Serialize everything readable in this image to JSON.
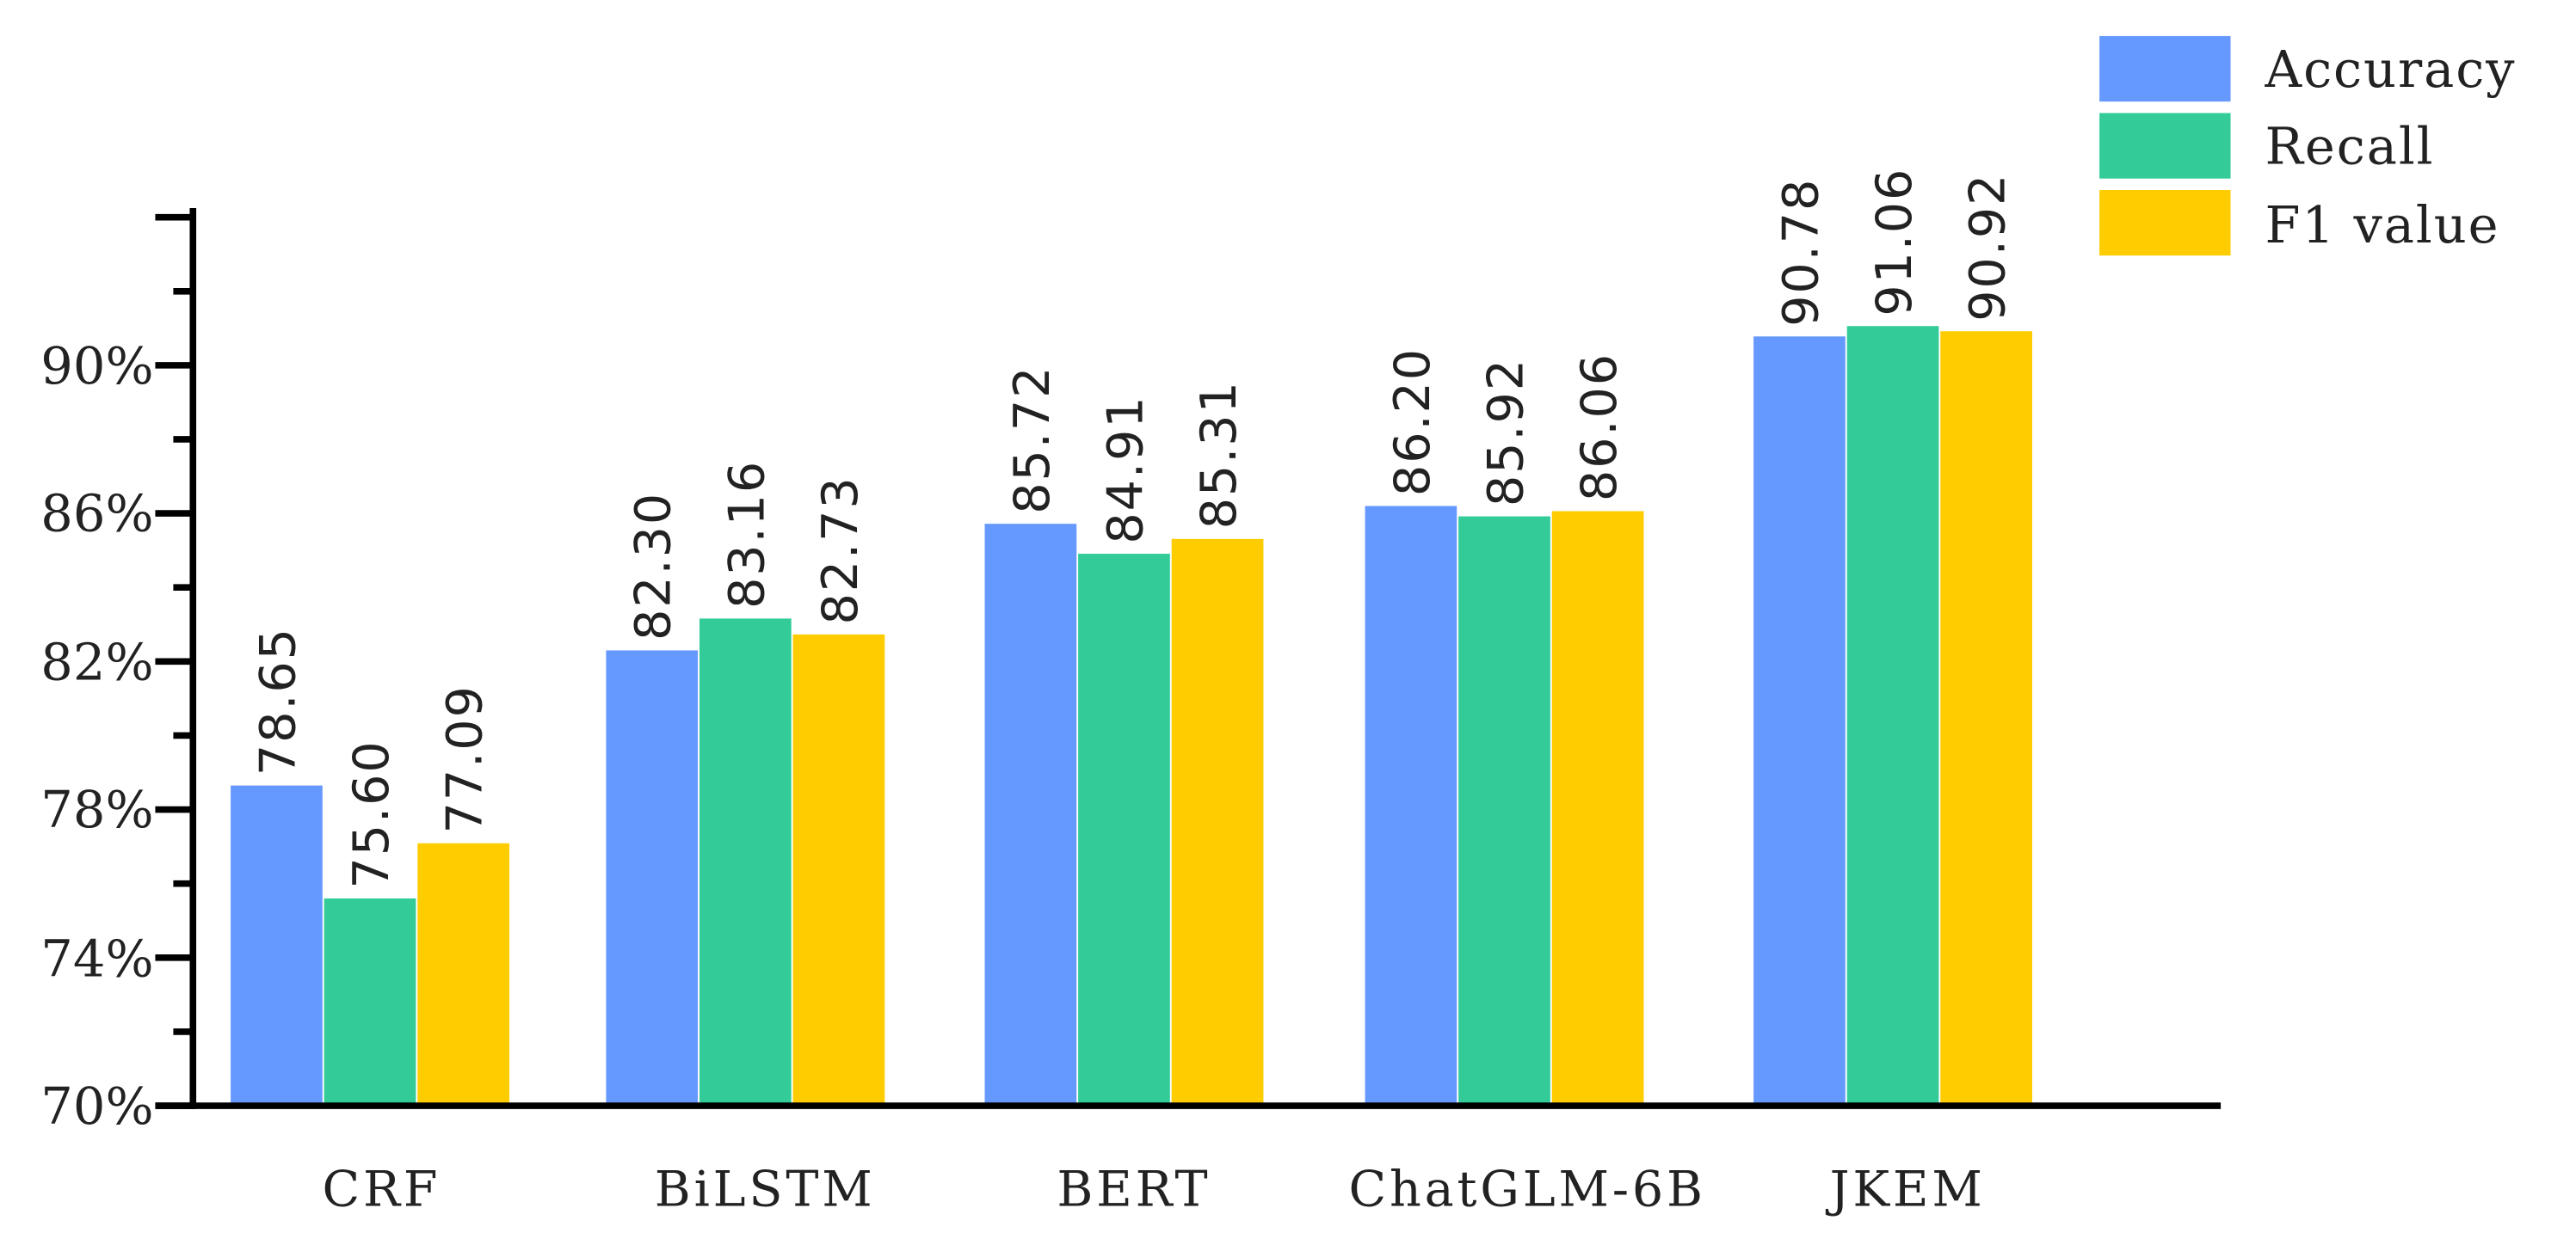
{
  "chart_data": {
    "type": "bar",
    "title": "",
    "xlabel": "",
    "ylabel": "",
    "categories": [
      "CRF",
      "BiLSTM",
      "BERT",
      "ChatGLM-6B",
      "JKEM"
    ],
    "series": [
      {
        "name": "Accuracy",
        "color": "#6699FF",
        "values": [
          78.65,
          82.3,
          85.72,
          86.2,
          90.78
        ],
        "labels": [
          "78.65",
          "82.30",
          "85.72",
          "86.20",
          "90.78"
        ]
      },
      {
        "name": "Recall",
        "color": "#33CC99",
        "values": [
          75.6,
          83.16,
          84.91,
          85.92,
          91.06
        ],
        "labels": [
          "75.60",
          "83.16",
          "84.91",
          "85.92",
          "91.06"
        ]
      },
      {
        "name": "F1 value",
        "color": "#FFCC00",
        "values": [
          77.09,
          82.73,
          85.31,
          86.06,
          90.92
        ],
        "labels": [
          "77.09",
          "82.73",
          "85.31",
          "86.06",
          "90.92"
        ]
      }
    ],
    "ylim": [
      70,
      94
    ],
    "yticks": [
      "70%",
      "74%",
      "78%",
      "82%",
      "86%",
      "90%"
    ],
    "minor_tick_step": 2,
    "grid": false,
    "legend_position": "top-right",
    "data_labels": "rotated-vertical"
  }
}
